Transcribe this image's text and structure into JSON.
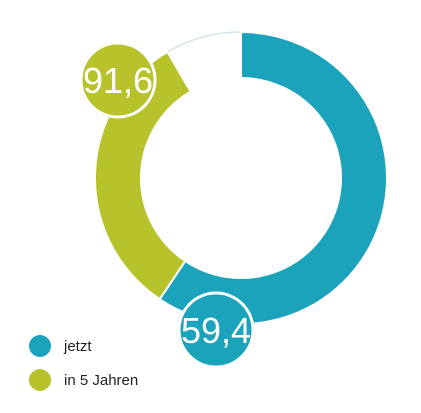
{
  "chart_data": {
    "type": "pie",
    "variant": "donut",
    "series": [
      {
        "name": "jetzt",
        "value": 59.4,
        "label": "59,4",
        "color": "#1aa3bb"
      },
      {
        "name": "in 5 Jahren",
        "value": 91.6,
        "label": "91,6",
        "color": "#b8c22b"
      }
    ],
    "max": 100,
    "legend_position": "bottom-left",
    "background_ring_color": "#cfe6ec"
  }
}
